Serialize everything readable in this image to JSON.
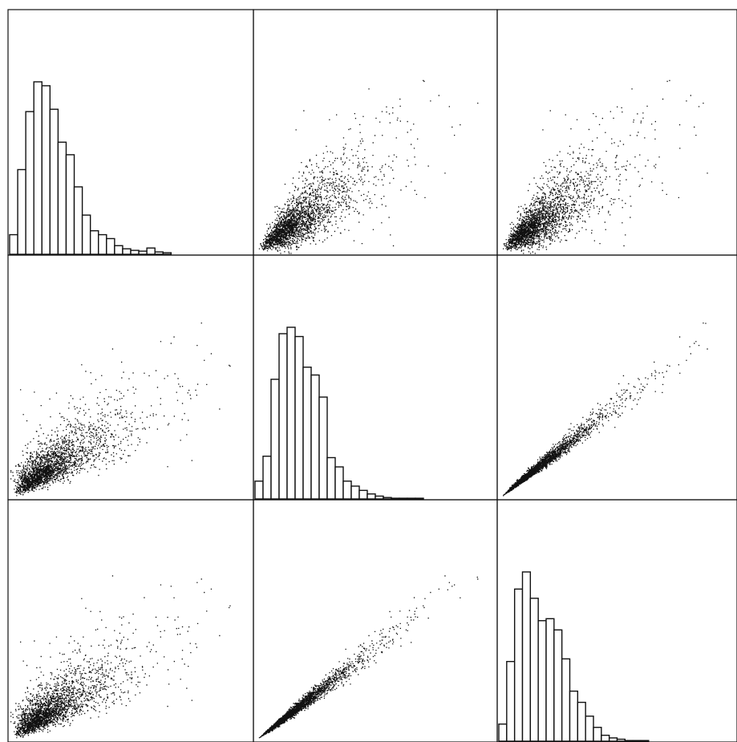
{
  "colors": {
    "ink": "#111111",
    "background": "#ffffff"
  },
  "chart_data": {
    "type": "scatter-matrix",
    "layout": "3x3",
    "title": "",
    "variables": [
      "",
      "",
      ""
    ],
    "diagonal": "histogram",
    "off_diagonal": "scatter",
    "axis_ticks": false,
    "grid": false,
    "legend": "none",
    "scatter_points_approx": 2500,
    "histograms": [
      {
        "variable_index": 0,
        "bin_edges": [
          0,
          1,
          2,
          3,
          4,
          5,
          6,
          7,
          8,
          9,
          10,
          11,
          12,
          13,
          14,
          15,
          16,
          17,
          18,
          19,
          20,
          21,
          22,
          23,
          24,
          25,
          26,
          27,
          28,
          29,
          30
        ],
        "counts": [
          25,
          108,
          182,
          220,
          215,
          185,
          143,
          127,
          86,
          50,
          30,
          25,
          20,
          11,
          7,
          5,
          4,
          8,
          3,
          2,
          0,
          0,
          0,
          0,
          0,
          0,
          0,
          0,
          0,
          0
        ]
      },
      {
        "variable_index": 1,
        "bin_edges": [
          0,
          1,
          2,
          3,
          4,
          5,
          6,
          7,
          8,
          9,
          10,
          11,
          12,
          13,
          14,
          15,
          16,
          17,
          18,
          19,
          20,
          21,
          22,
          23,
          24,
          25,
          26,
          27,
          28,
          29,
          30
        ],
        "counts": [
          25,
          60,
          168,
          232,
          241,
          228,
          185,
          174,
          143,
          58,
          45,
          25,
          18,
          12,
          7,
          4,
          2,
          1,
          1,
          1,
          1,
          0,
          0,
          0,
          0,
          0,
          0,
          0,
          0,
          0
        ]
      },
      {
        "variable_index": 2,
        "bin_edges": [
          0,
          1,
          2,
          3,
          4,
          5,
          6,
          7,
          8,
          9,
          10,
          11,
          12,
          13,
          14,
          15,
          16,
          17,
          18,
          19,
          20,
          21,
          22,
          23,
          24,
          25,
          26,
          27,
          28,
          29,
          30
        ],
        "counts": [
          26,
          121,
          231,
          257,
          217,
          183,
          186,
          169,
          125,
          76,
          59,
          38,
          21,
          9,
          5,
          3,
          1,
          1,
          1,
          0,
          0,
          0,
          0,
          0,
          0,
          0,
          0,
          0,
          0,
          0
        ]
      }
    ],
    "scatter_shapes": {
      "pair_0_1": {
        "slope": 1.1,
        "noise": 0.32,
        "skew_x": 0.3
      },
      "pair_0_2": {
        "slope": 1.05,
        "noise": 0.33,
        "skew_x": 0.3
      },
      "pair_1_2": {
        "slope": 1.0,
        "noise": 0.08,
        "skew_x": 0.32
      }
    },
    "value_range": [
      0,
      30
    ]
  }
}
